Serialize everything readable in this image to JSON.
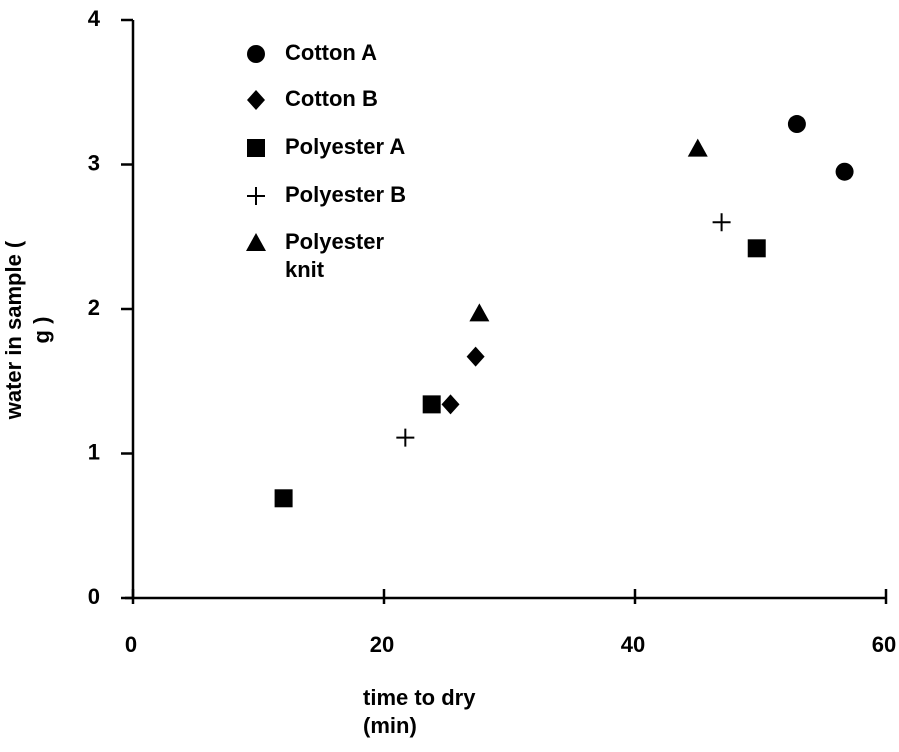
{
  "chart_data": {
    "type": "scatter",
    "x_label": "time to dry (min)",
    "y_label": "water in sample ( g )",
    "xlim": [
      0,
      60
    ],
    "xticks": [
      0,
      20,
      40,
      60
    ],
    "ylim": [
      0,
      4
    ],
    "yticks": [
      0,
      1,
      2,
      3,
      4
    ],
    "series": [
      {
        "name": "Cotton A",
        "color": "#000000",
        "marker": "circle",
        "x": [
          52.9,
          56.7
        ],
        "values": [
          3.28,
          2.95
        ]
      },
      {
        "name": "Cotton B",
        "color": "#000000",
        "marker": "diamond",
        "x": [
          27.3,
          25.3
        ],
        "values": [
          1.67,
          1.34
        ]
      },
      {
        "name": "Polyester A",
        "color": "#000000",
        "marker": "square",
        "x": [
          12.0,
          23.8,
          49.7
        ],
        "values": [
          0.69,
          1.34,
          2.42
        ]
      },
      {
        "name": "Polyester B",
        "color": "#000000",
        "marker": "plus",
        "x": [
          21.7,
          46.9
        ],
        "values": [
          1.11,
          2.6
        ]
      },
      {
        "name": "Polyester knit",
        "color": "#000000",
        "marker": "triangle",
        "x": [
          27.6,
          45.0
        ],
        "values": [
          1.97,
          3.11
        ]
      }
    ]
  }
}
